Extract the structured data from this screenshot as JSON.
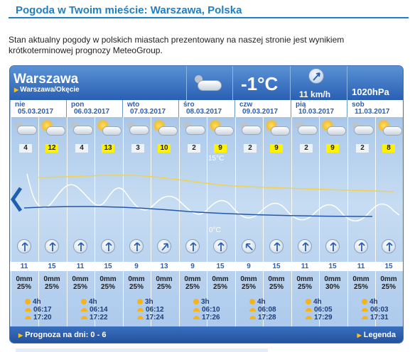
{
  "page": {
    "title": "Pogoda w Twoim mieście: Warszawa, Polska",
    "description": "Stan aktualny pogody w polskich miastach prezentowany na naszej stronie jest wynikiem krótkoterminowej prognozy MeteoGroup."
  },
  "current": {
    "city": "Warszawa",
    "station": "Warszawa/Okęcie",
    "temperature": "-1°C",
    "wind": "11 km/h",
    "pressure": "1020hPa",
    "icon": "night-cloudy-icon"
  },
  "chart_labels": {
    "top": "15°C",
    "zero": "0°C"
  },
  "days": [
    {
      "name": "nie",
      "date": "05.03.2017",
      "min": "4",
      "max": "12",
      "wind": [
        "11",
        "15"
      ],
      "precip": [
        [
          "0mm",
          "25%"
        ],
        [
          "0mm",
          "25%"
        ]
      ],
      "sun_hours": "4h",
      "sunrise": "06:17",
      "sunset": "17:20"
    },
    {
      "name": "pon",
      "date": "06.03.2017",
      "min": "4",
      "max": "13",
      "wind": [
        "11",
        "15"
      ],
      "precip": [
        [
          "0mm",
          "25%"
        ],
        [
          "0mm",
          "25%"
        ]
      ],
      "sun_hours": "4h",
      "sunrise": "06:14",
      "sunset": "17:22"
    },
    {
      "name": "wto",
      "date": "07.03.2017",
      "min": "3",
      "max": "10",
      "wind": [
        "9",
        "13"
      ],
      "precip": [
        [
          "0mm",
          "25%"
        ],
        [
          "0mm",
          "25%"
        ]
      ],
      "sun_hours": "3h",
      "sunrise": "06:12",
      "sunset": "17:24"
    },
    {
      "name": "śro",
      "date": "08.03.2017",
      "min": "2",
      "max": "9",
      "wind": [
        "9",
        "15"
      ],
      "precip": [
        [
          "0mm",
          "25%"
        ],
        [
          "0mm",
          "25%"
        ]
      ],
      "sun_hours": "3h",
      "sunrise": "06:10",
      "sunset": "17:26"
    },
    {
      "name": "czw",
      "date": "09.03.2017",
      "min": "2",
      "max": "9",
      "wind": [
        "9",
        "15"
      ],
      "precip": [
        [
          "0mm",
          "25%"
        ],
        [
          "0mm",
          "25%"
        ]
      ],
      "sun_hours": "4h",
      "sunrise": "06:08",
      "sunset": "17:28"
    },
    {
      "name": "pią",
      "date": "10.03.2017",
      "min": "2",
      "max": "9",
      "wind": [
        "11",
        "15"
      ],
      "precip": [
        [
          "0mm",
          "25%"
        ],
        [
          "0mm",
          "30%"
        ]
      ],
      "sun_hours": "4h",
      "sunrise": "06:05",
      "sunset": "17:29"
    },
    {
      "name": "sob",
      "date": "11.03.2017",
      "min": "2",
      "max": "8",
      "wind": [
        "11",
        "15"
      ],
      "precip": [
        [
          "0mm",
          "25%"
        ],
        [
          "0mm",
          "25%"
        ]
      ],
      "sun_hours": "4h",
      "sunrise": "06:03",
      "sunset": "17:31"
    }
  ],
  "footer": {
    "forecast": "Prognoza na dni: 0 - 6",
    "legend": "Legenda"
  },
  "colors": {
    "accent": "#1f7fc3",
    "max_temp_line": "#f2d24a",
    "temp_line": "#ffffff",
    "pressure_line": "#2458a6"
  }
}
